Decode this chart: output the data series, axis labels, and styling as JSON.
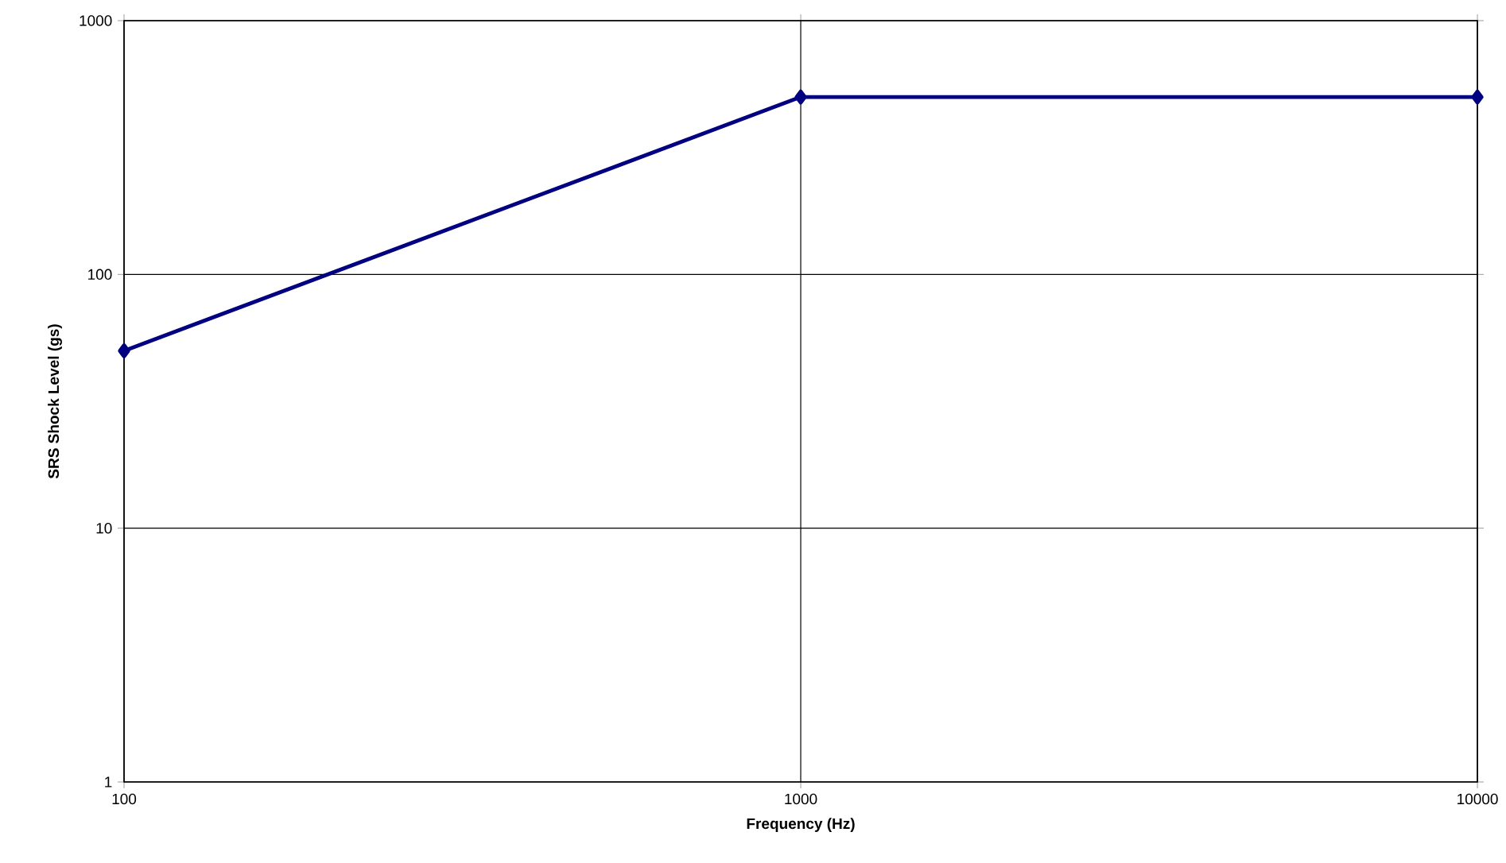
{
  "chart_data": {
    "type": "line",
    "xlabel": "Frequency (Hz)",
    "ylabel": "SRS Shock Level (gs)",
    "x": [
      100,
      1000,
      10000
    ],
    "series": [
      {
        "color": "#000080",
        "values": [
          50,
          500,
          500
        ]
      }
    ],
    "xlim": [
      100,
      10000
    ],
    "ylim": [
      1,
      1000
    ],
    "xticks": [
      100,
      1000,
      10000
    ],
    "yticks": [
      1,
      10,
      100,
      1000
    ],
    "log": "xy",
    "grid": true,
    "marker": "diamond",
    "line_style": "solid"
  }
}
